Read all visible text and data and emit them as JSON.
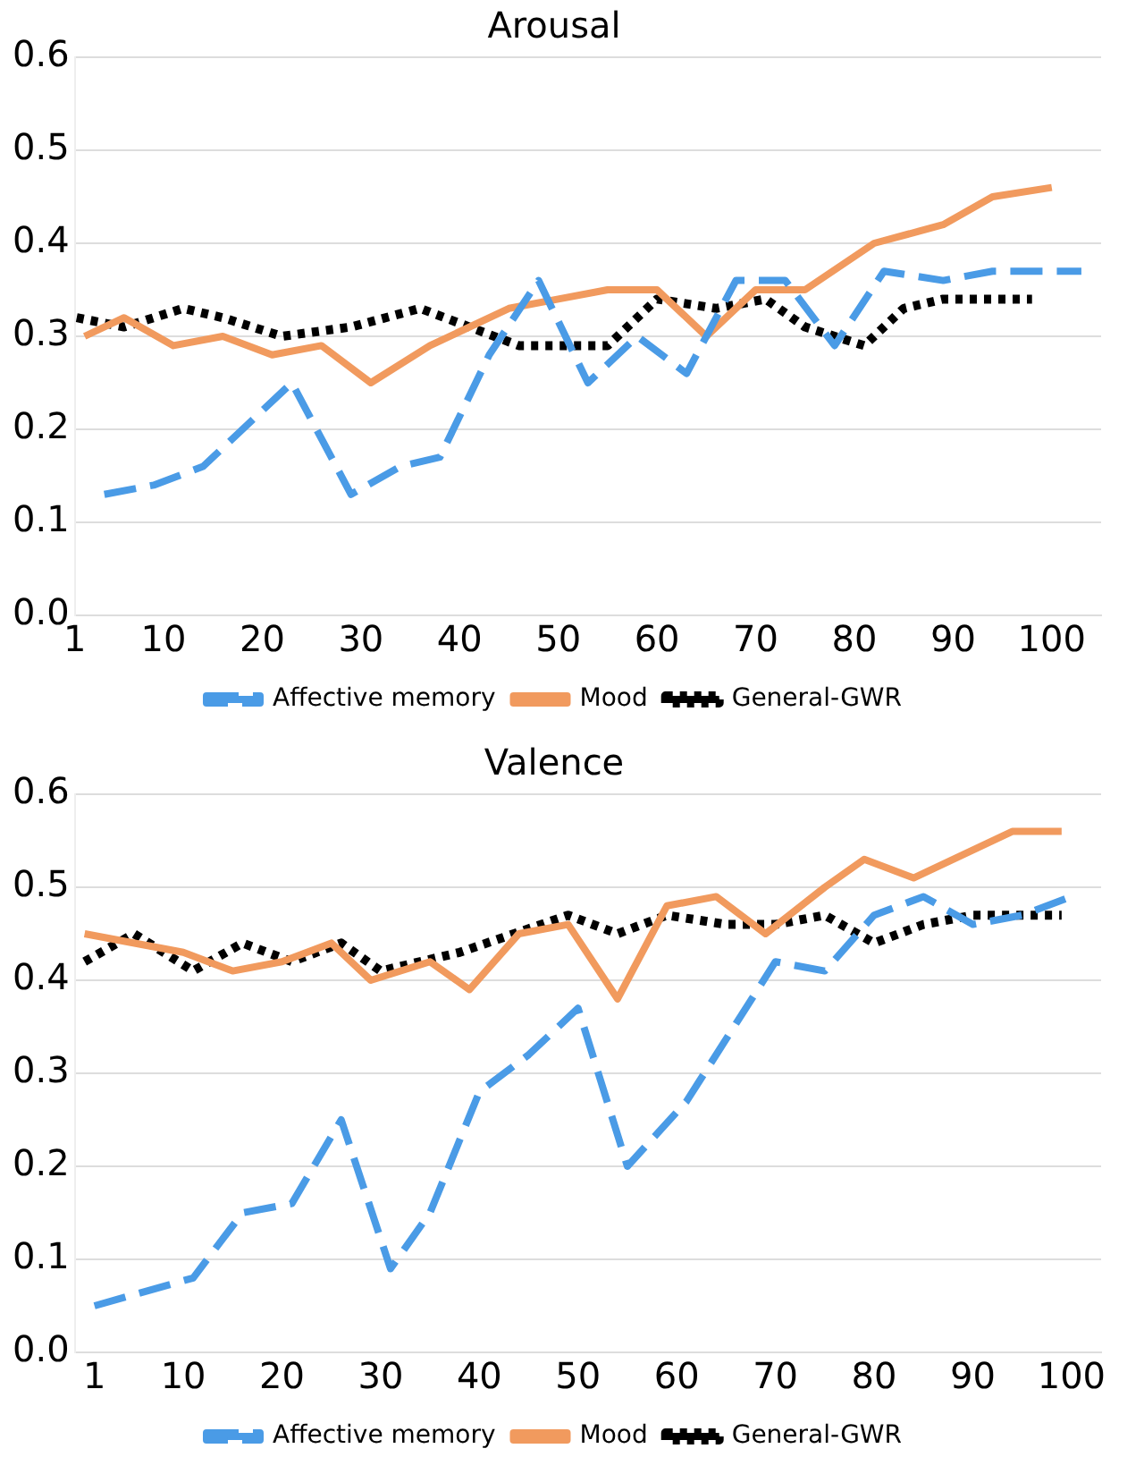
{
  "chart_data": [
    {
      "type": "line",
      "title": "Arousal",
      "xlim": [
        1,
        105
      ],
      "xticks": [
        1,
        10,
        20,
        30,
        40,
        50,
        60,
        70,
        80,
        90,
        100
      ],
      "ylim": [
        0,
        0.6
      ],
      "yticks": [
        {
          "value": 0,
          "label": "0.0"
        },
        0.1,
        0.2,
        0.3,
        0.4,
        0.5,
        0.6
      ],
      "grid": "y",
      "legend": "bottom",
      "marker": "none",
      "series": [
        {
          "name": "Affective memory",
          "color": "#4a9be6",
          "line_style": "dashed",
          "x": [
            4,
            9,
            14,
            19,
            23,
            29,
            34,
            38,
            43,
            48,
            53,
            58,
            63,
            68,
            73,
            78,
            83,
            89,
            94,
            98,
            103
          ],
          "values": [
            0.13,
            0.14,
            0.16,
            0.21,
            0.25,
            0.13,
            0.16,
            0.17,
            0.28,
            0.36,
            0.25,
            0.3,
            0.26,
            0.36,
            0.36,
            0.29,
            0.37,
            0.36,
            0.37,
            0.37,
            0.37
          ]
        },
        {
          "name": "Mood",
          "color": "#f19a5e",
          "line_style": "solid",
          "x": [
            2,
            6,
            11,
            16,
            21,
            26,
            31,
            37,
            45,
            50,
            55,
            60,
            65,
            70,
            75,
            82,
            89,
            94,
            100
          ],
          "values": [
            0.3,
            0.32,
            0.29,
            0.3,
            0.28,
            0.29,
            0.25,
            0.29,
            0.33,
            0.34,
            0.35,
            0.35,
            0.3,
            0.35,
            0.35,
            0.4,
            0.42,
            0.45,
            0.46
          ]
        },
        {
          "name": "General-GWR",
          "color": "#000000",
          "line_style": "dotted",
          "x": [
            1.2,
            6,
            12,
            16,
            22,
            29,
            36,
            41,
            46,
            55,
            60,
            66,
            71,
            75,
            81,
            85,
            89,
            98
          ],
          "values": [
            0.32,
            0.31,
            0.33,
            0.32,
            0.3,
            0.31,
            0.33,
            0.31,
            0.29,
            0.29,
            0.34,
            0.33,
            0.34,
            0.31,
            0.29,
            0.33,
            0.34,
            0.34
          ]
        }
      ]
    },
    {
      "type": "line",
      "title": "Valence",
      "xlim": [
        -1,
        103
      ],
      "xticks": [
        1,
        10,
        20,
        30,
        40,
        50,
        60,
        70,
        80,
        90,
        100
      ],
      "ylim": [
        0,
        0.6
      ],
      "yticks": [
        {
          "value": 0,
          "label": "0.0"
        },
        0.1,
        0.2,
        0.3,
        0.4,
        0.5,
        0.6
      ],
      "grid": "y",
      "legend": "bottom",
      "marker": "none",
      "series": [
        {
          "name": "Affective memory",
          "color": "#4a9be6",
          "line_style": "dashed",
          "x": [
            1,
            11,
            16,
            21,
            26,
            31,
            35,
            40,
            45,
            50,
            55,
            61,
            70,
            75,
            80,
            85,
            90,
            95,
            100
          ],
          "values": [
            0.05,
            0.08,
            0.15,
            0.16,
            0.25,
            0.09,
            0.15,
            0.28,
            0.32,
            0.37,
            0.2,
            0.27,
            0.42,
            0.41,
            0.47,
            0.49,
            0.46,
            0.47,
            0.49
          ]
        },
        {
          "name": "Mood",
          "color": "#f19a5e",
          "line_style": "solid",
          "x": [
            0,
            10,
            15,
            20,
            25,
            29,
            35,
            39,
            44,
            49,
            54,
            59,
            64,
            69,
            75,
            79,
            84,
            94,
            99
          ],
          "values": [
            0.45,
            0.43,
            0.41,
            0.42,
            0.44,
            0.4,
            0.42,
            0.39,
            0.45,
            0.46,
            0.38,
            0.48,
            0.49,
            0.45,
            0.5,
            0.53,
            0.51,
            0.56,
            0.56
          ]
        },
        {
          "name": "General-GWR",
          "color": "#000000",
          "line_style": "dotted",
          "x": [
            0,
            5,
            11,
            16,
            21,
            26,
            30,
            38,
            49,
            54,
            59,
            65,
            70,
            75,
            80,
            85,
            90,
            99
          ],
          "values": [
            0.42,
            0.45,
            0.41,
            0.44,
            0.42,
            0.44,
            0.41,
            0.43,
            0.47,
            0.45,
            0.47,
            0.46,
            0.46,
            0.47,
            0.44,
            0.46,
            0.47,
            0.47
          ]
        }
      ]
    }
  ]
}
